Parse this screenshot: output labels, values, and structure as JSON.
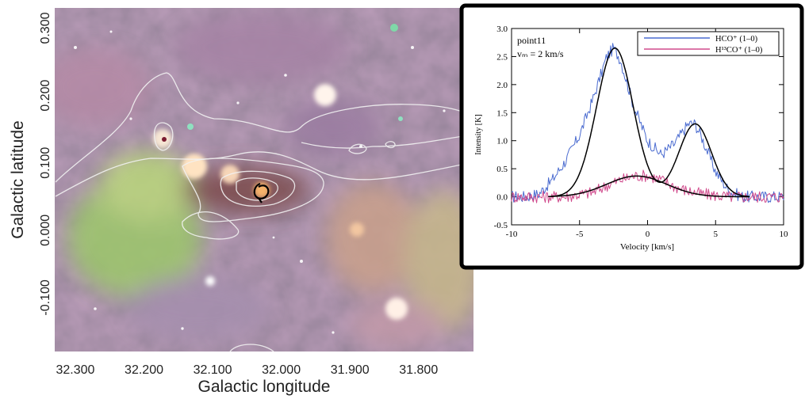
{
  "chart_data": [
    {
      "type": "image",
      "xlabel": "Galactic longitude",
      "ylabel": "Galactic latitude",
      "x_ticks": [
        "32.300",
        "32.200",
        "32.100",
        "32.000",
        "31.900",
        "31.800"
      ],
      "y_ticks": [
        "0.300",
        "0.200",
        "0.100",
        "0.000",
        "-0.100"
      ],
      "xlim": [
        32.33,
        31.72
      ],
      "ylim": [
        -0.18,
        0.33
      ],
      "contour_color": "#f2f2f2",
      "marker_color": "#000000"
    },
    {
      "type": "line",
      "xlabel": "Velocity [km/s]",
      "ylabel": "Intensity [K]",
      "xlim": [
        -10,
        10
      ],
      "ylim": [
        -0.5,
        3.0
      ],
      "x_ticks": [
        "-10",
        "-5",
        "0",
        "5",
        "10"
      ],
      "y_ticks": [
        "-0.5",
        "0.0",
        "0.5",
        "1.0",
        "1.5",
        "2.0",
        "2.5",
        "3.0"
      ],
      "annotation_line1": "point11",
      "annotation_line2": "vₘ = 2 km/s",
      "series": [
        {
          "name": "HCO⁺ (1–0)",
          "color": "#4a6bd0",
          "x": [
            -10,
            -9,
            -8,
            -7,
            -6,
            -5,
            -4,
            -3,
            -2.5,
            -2,
            -1,
            0,
            1,
            2,
            3,
            3.5,
            4,
            5,
            6,
            7,
            8,
            10
          ],
          "y": [
            0.0,
            0.0,
            0.05,
            0.3,
            0.65,
            1.1,
            1.75,
            2.5,
            2.65,
            2.45,
            1.6,
            1.0,
            0.75,
            0.95,
            1.3,
            1.3,
            1.05,
            0.45,
            0.1,
            0.0,
            0.0,
            0.0
          ]
        },
        {
          "name": "H¹³CO⁺ (1–0)",
          "color": "#d04a8c",
          "x": [
            -10,
            -8,
            -6,
            -4,
            -3,
            -2,
            -1,
            0,
            1,
            2,
            3,
            4,
            6,
            8,
            10
          ],
          "y": [
            0.0,
            0.0,
            0.0,
            0.08,
            0.2,
            0.3,
            0.37,
            0.38,
            0.3,
            0.18,
            0.1,
            0.05,
            0.0,
            0.0,
            0.0
          ]
        }
      ],
      "fit": {
        "color": "#000000",
        "components": [
          {
            "amp": 2.65,
            "center": -2.4,
            "sigma": 1.35
          },
          {
            "amp": 1.3,
            "center": 3.5,
            "sigma": 1.2
          }
        ],
        "h13_component": {
          "amp": 0.37,
          "center": -0.8,
          "sigma": 2.2
        }
      }
    }
  ]
}
